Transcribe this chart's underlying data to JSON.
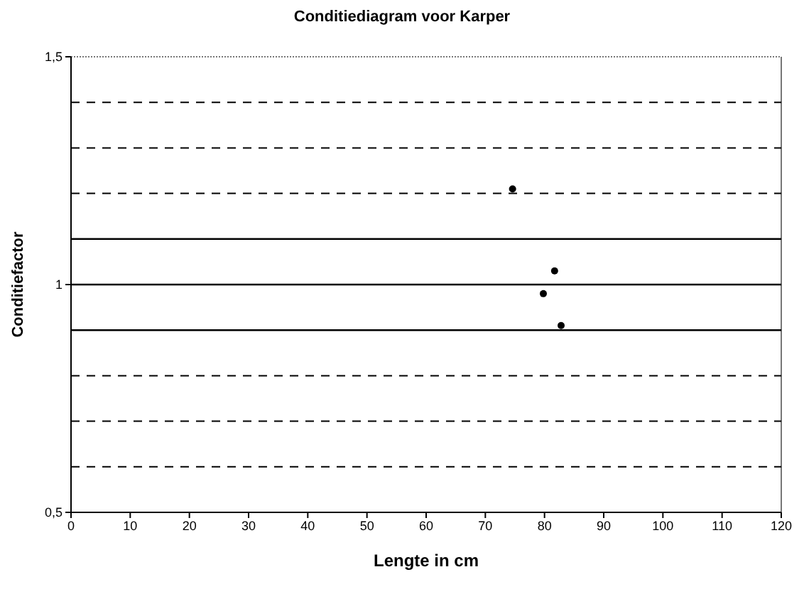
{
  "chart_data": {
    "type": "scatter",
    "title": "Conditiediagram voor Karper",
    "xlabel": "Lengte in cm",
    "ylabel": "Conditiefactor",
    "x": [
      74.6,
      81.7,
      79.8,
      82.8
    ],
    "values": [
      1.21,
      1.03,
      0.98,
      0.91
    ],
    "color": "#000000",
    "marker": "circle",
    "xlim": [
      0,
      120
    ],
    "xticks": [
      0,
      10,
      20,
      30,
      40,
      50,
      60,
      70,
      80,
      90,
      100,
      110,
      120
    ],
    "ylim": [
      0.5,
      1.5
    ],
    "yticks": [
      {
        "value": 0.5,
        "label": "0,5"
      },
      1,
      {
        "value": 1.5,
        "label": "1,5"
      }
    ],
    "ref_lines": [
      {
        "axis": "y",
        "value": 0.6,
        "line_style": "dashed"
      },
      {
        "axis": "y",
        "value": 0.7,
        "line_style": "dashed"
      },
      {
        "axis": "y",
        "value": 0.8,
        "line_style": "dashed"
      },
      {
        "axis": "y",
        "value": 0.9,
        "line_style": "solid"
      },
      {
        "axis": "y",
        "value": 1.0,
        "line_style": "solid"
      },
      {
        "axis": "y",
        "value": 1.1,
        "line_style": "solid"
      },
      {
        "axis": "y",
        "value": 1.2,
        "line_style": "dashed"
      },
      {
        "axis": "y",
        "value": 1.3,
        "line_style": "dashed"
      },
      {
        "axis": "y",
        "value": 1.4,
        "line_style": "dashed"
      }
    ]
  }
}
